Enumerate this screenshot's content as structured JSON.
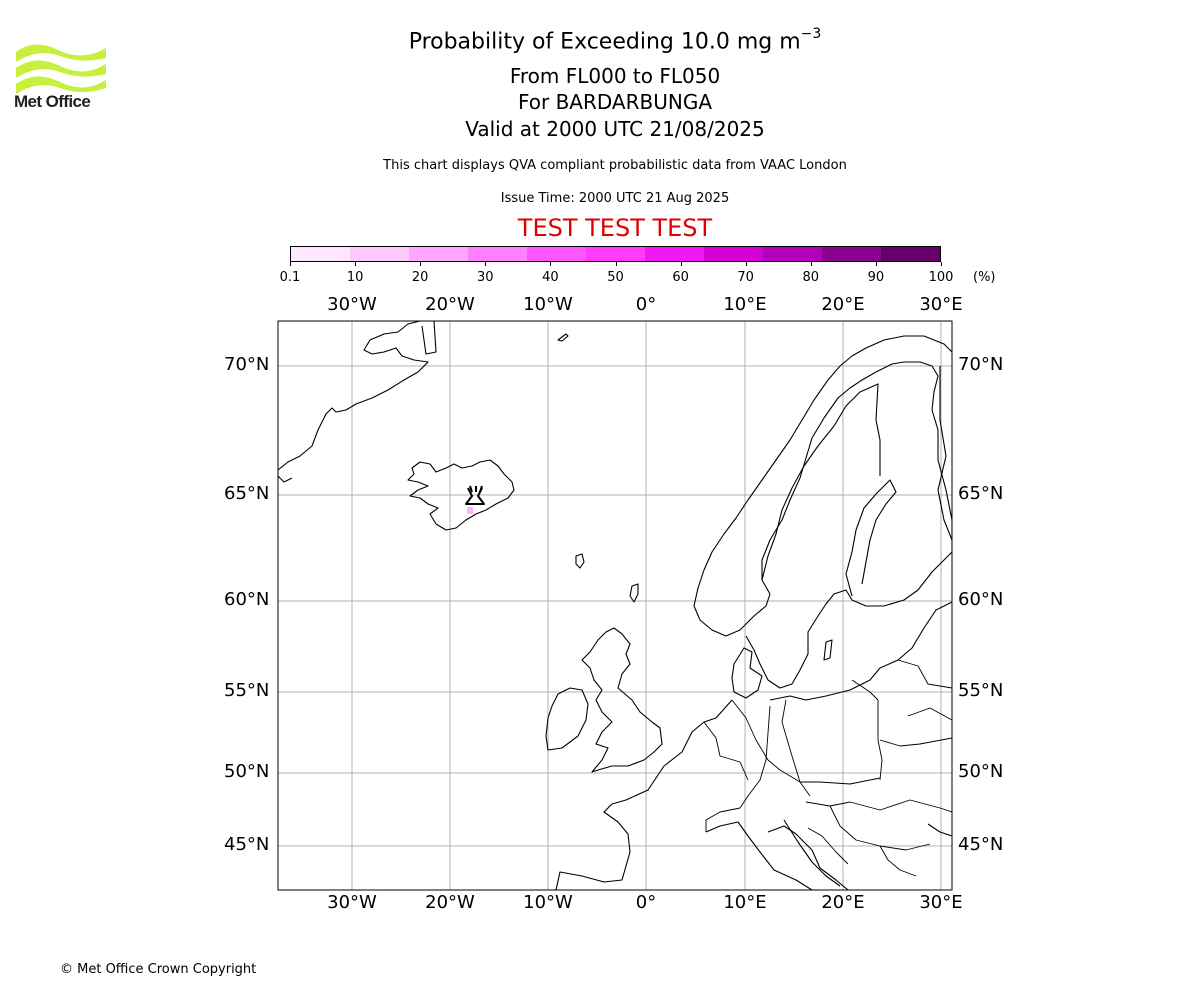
{
  "header": {
    "title_main": "Probability of Exceeding 10.0 mg m",
    "title_exponent": "−3",
    "flight_levels": "From FL000 to FL050",
    "volcano": "For BARDARBUNGA",
    "valid_time": "Valid at 2000 UTC 21/08/2025",
    "description": "This chart displays QVA compliant probabilistic data from VAAC London",
    "issue_time": "Issue Time: 2000 UTC 21 Aug 2025",
    "test_banner": "TEST TEST TEST"
  },
  "logo": {
    "text": "Met Office",
    "color": "#c6f03d"
  },
  "colorbar": {
    "labels": [
      "0.1",
      "10",
      "20",
      "30",
      "40",
      "50",
      "60",
      "70",
      "80",
      "90",
      "100"
    ],
    "unit": "(%)",
    "colors": [
      "#ffe8ff",
      "#ffc8ff",
      "#ffa6ff",
      "#ff80ff",
      "#ff55ff",
      "#ff3cff",
      "#f018f5",
      "#d400d8",
      "#b400b8",
      "#8c008f",
      "#640068"
    ]
  },
  "map": {
    "lon_labels": [
      "30°W",
      "20°W",
      "10°W",
      "0°",
      "10°E",
      "20°E",
      "30°E"
    ],
    "lat_labels": [
      "70°N",
      "65°N",
      "60°N",
      "55°N",
      "50°N",
      "45°N"
    ],
    "volcano_symbol": "volcano-icon",
    "ash_color": "#ffb3ff"
  },
  "footer": {
    "copyright": "© Met Office Crown Copyright"
  }
}
